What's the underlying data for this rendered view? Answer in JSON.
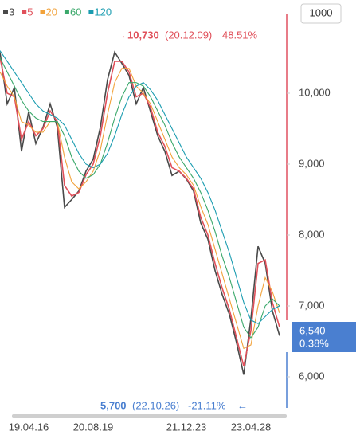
{
  "chart_data": {
    "type": "line",
    "top_button": "1000",
    "categories": [
      null,
      null,
      null,
      null,
      "19.04.16",
      null,
      null,
      null,
      null,
      null,
      null,
      null,
      null,
      "20.08.19",
      null,
      null,
      null,
      null,
      null,
      null,
      null,
      null,
      null,
      null,
      null,
      null,
      "21.12.23",
      null,
      null,
      null,
      null,
      null,
      null,
      null,
      null,
      "23.04.28",
      null,
      null,
      null,
      null
    ],
    "series": [
      {
        "name": "3",
        "color": "#4a4a4a",
        "values": [
          10580,
          9850,
          10080,
          9180,
          9740,
          9290,
          9520,
          9850,
          9520,
          8390,
          8500,
          8620,
          8900,
          9070,
          9520,
          10190,
          10580,
          10420,
          10250,
          9850,
          10080,
          9740,
          9400,
          9180,
          8840,
          8900,
          8790,
          8620,
          8170,
          7940,
          7500,
          7160,
          6880,
          6480,
          6030,
          6820,
          7840,
          7600,
          6930,
          6580
        ]
      },
      {
        "name": "5",
        "color": "#e0505a",
        "values": [
          10500,
          10000,
          9950,
          9350,
          9600,
          9400,
          9500,
          9750,
          9600,
          8700,
          8550,
          8600,
          8850,
          9000,
          9400,
          10000,
          10450,
          10450,
          10300,
          9950,
          10000,
          9800,
          9450,
          9250,
          8950,
          8900,
          8800,
          8650,
          8250,
          8000,
          7600,
          7250,
          6950,
          6550,
          6150,
          6650,
          7600,
          7650,
          7050,
          6700
        ]
      },
      {
        "name": "20",
        "color": "#f2a23a",
        "values": [
          10300,
          10100,
          9950,
          9600,
          9550,
          9450,
          9450,
          9600,
          9600,
          9100,
          8750,
          8650,
          8750,
          8900,
          9200,
          9700,
          10150,
          10350,
          10350,
          10100,
          10000,
          9850,
          9600,
          9350,
          9100,
          8950,
          8850,
          8700,
          8400,
          8150,
          7800,
          7450,
          7100,
          6750,
          6400,
          6450,
          7000,
          7400,
          7200,
          6900
        ]
      },
      {
        "name": "60",
        "color": "#3aa86a",
        "values": [
          10500,
          10300,
          10100,
          9900,
          9750,
          9650,
          9600,
          9600,
          9600,
          9400,
          9100,
          8900,
          8800,
          8850,
          9000,
          9300,
          9650,
          9950,
          10150,
          10150,
          10100,
          9950,
          9750,
          9550,
          9300,
          9100,
          8950,
          8800,
          8600,
          8350,
          8050,
          7700,
          7400,
          7050,
          6700,
          6550,
          6700,
          7000,
          7100,
          7000
        ]
      },
      {
        "name": "120",
        "color": "#1a9cb0",
        "values": [
          10600,
          10450,
          10300,
          10150,
          10000,
          9850,
          9750,
          9700,
          9650,
          9550,
          9350,
          9150,
          9000,
          8950,
          9000,
          9150,
          9400,
          9700,
          9950,
          10100,
          10150,
          10050,
          9900,
          9700,
          9500,
          9300,
          9100,
          8950,
          8800,
          8600,
          8350,
          8050,
          7750,
          7400,
          7050,
          6800,
          6750,
          6850,
          6950,
          7000
        ]
      }
    ],
    "ylim": [
      5500,
      11000
    ],
    "yticks": [
      {
        "value": 6000,
        "label": "6,000"
      },
      {
        "value": 7000,
        "label": "7,000"
      },
      {
        "value": 8000,
        "label": "8,000"
      },
      {
        "value": 9000,
        "label": "9,000"
      },
      {
        "value": 10000,
        "label": "10,000"
      }
    ],
    "max_annotation": {
      "price": "10,730",
      "date": "(20.12.09)",
      "change": "48.51%"
    },
    "min_annotation": {
      "price": "5,700",
      "date": "(22.10.26)",
      "change": "-21.11%"
    },
    "current": {
      "price": "6,540",
      "change": "0.38%"
    }
  }
}
